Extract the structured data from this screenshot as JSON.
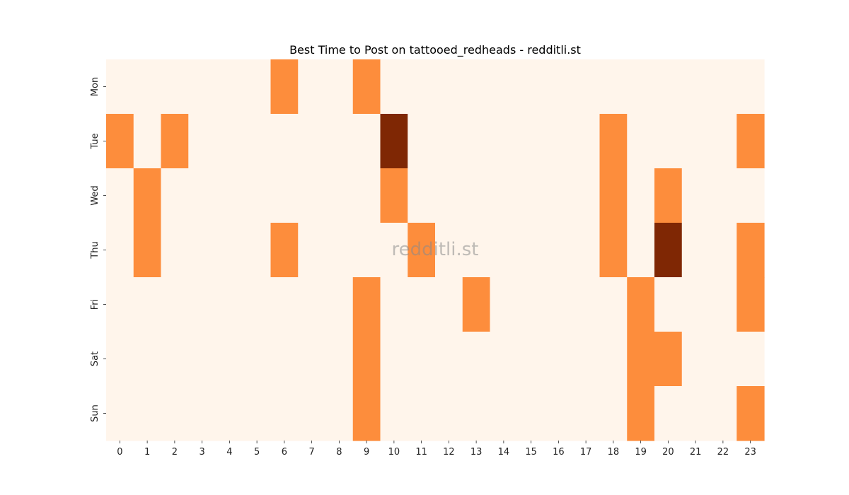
{
  "chart_data": {
    "type": "heatmap",
    "title": "Best Time to Post on tattooed_redheads - redditli.st",
    "watermark": "redditli.st",
    "x": [
      "0",
      "1",
      "2",
      "3",
      "4",
      "5",
      "6",
      "7",
      "8",
      "9",
      "10",
      "11",
      "12",
      "13",
      "14",
      "15",
      "16",
      "17",
      "18",
      "19",
      "20",
      "21",
      "22",
      "23"
    ],
    "y": [
      "Mon",
      "Tue",
      "Wed",
      "Thu",
      "Fri",
      "Sat",
      "Sun"
    ],
    "values": [
      [
        0,
        0,
        0,
        0,
        0,
        0,
        1,
        0,
        0,
        1,
        0,
        0,
        0,
        0,
        0,
        0,
        0,
        0,
        0,
        0,
        0,
        0,
        0,
        0
      ],
      [
        1,
        0,
        1,
        0,
        0,
        0,
        0,
        0,
        0,
        0,
        2,
        0,
        0,
        0,
        0,
        0,
        0,
        0,
        1,
        0,
        0,
        0,
        0,
        1
      ],
      [
        0,
        1,
        0,
        0,
        0,
        0,
        0,
        0,
        0,
        0,
        1,
        0,
        0,
        0,
        0,
        0,
        0,
        0,
        1,
        0,
        1,
        0,
        0,
        0
      ],
      [
        0,
        1,
        0,
        0,
        0,
        0,
        1,
        0,
        0,
        0,
        0,
        1,
        0,
        0,
        0,
        0,
        0,
        0,
        1,
        0,
        2,
        0,
        0,
        1
      ],
      [
        0,
        0,
        0,
        0,
        0,
        0,
        0,
        0,
        0,
        1,
        0,
        0,
        0,
        1,
        0,
        0,
        0,
        0,
        0,
        1,
        0,
        0,
        0,
        1
      ],
      [
        0,
        0,
        0,
        0,
        0,
        0,
        0,
        0,
        0,
        1,
        0,
        0,
        0,
        0,
        0,
        0,
        0,
        0,
        0,
        1,
        1,
        0,
        0,
        0
      ],
      [
        0,
        0,
        0,
        0,
        0,
        0,
        0,
        0,
        0,
        1,
        0,
        0,
        0,
        0,
        0,
        0,
        0,
        0,
        0,
        1,
        0,
        0,
        0,
        1
      ]
    ],
    "colorscale": {
      "0": "#fff5eb",
      "1": "#fd8d3c",
      "2": "#7f2704"
    },
    "colorbar": false
  }
}
